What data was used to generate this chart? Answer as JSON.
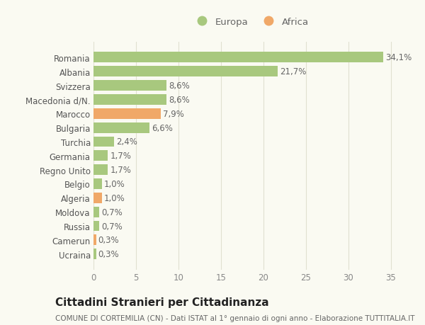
{
  "categories": [
    "Ucraina",
    "Camerun",
    "Russia",
    "Moldova",
    "Algeria",
    "Belgio",
    "Regno Unito",
    "Germania",
    "Turchia",
    "Bulgaria",
    "Marocco",
    "Macedonia d/N.",
    "Svizzera",
    "Albania",
    "Romania"
  ],
  "values": [
    0.3,
    0.3,
    0.7,
    0.7,
    1.0,
    1.0,
    1.7,
    1.7,
    2.4,
    6.6,
    7.9,
    8.6,
    8.6,
    21.7,
    34.1
  ],
  "labels": [
    "0,3%",
    "0,3%",
    "0,7%",
    "0,7%",
    "1,0%",
    "1,0%",
    "1,7%",
    "1,7%",
    "2,4%",
    "6,6%",
    "7,9%",
    "8,6%",
    "8,6%",
    "21,7%",
    "34,1%"
  ],
  "colors": [
    "#a8c87e",
    "#f0a868",
    "#a8c87e",
    "#a8c87e",
    "#f0a868",
    "#a8c87e",
    "#a8c87e",
    "#a8c87e",
    "#a8c87e",
    "#a8c87e",
    "#f0a868",
    "#a8c87e",
    "#a8c87e",
    "#a8c87e",
    "#a8c87e"
  ],
  "europa_color": "#a8c87e",
  "africa_color": "#f0a868",
  "bg_color": "#fafaf2",
  "grid_color": "#e0e0d0",
  "title": "Cittadini Stranieri per Cittadinanza",
  "subtitle": "COMUNE DI CORTEMILIA (CN) - Dati ISTAT al 1° gennaio di ogni anno - Elaborazione TUTTITALIA.IT",
  "xlim": [
    0,
    37
  ],
  "xticks": [
    0,
    5,
    10,
    15,
    20,
    25,
    30,
    35
  ],
  "bar_height": 0.75,
  "label_fontsize": 8.5,
  "tick_fontsize": 8.5,
  "ytick_fontsize": 8.5,
  "title_fontsize": 11,
  "subtitle_fontsize": 7.5
}
